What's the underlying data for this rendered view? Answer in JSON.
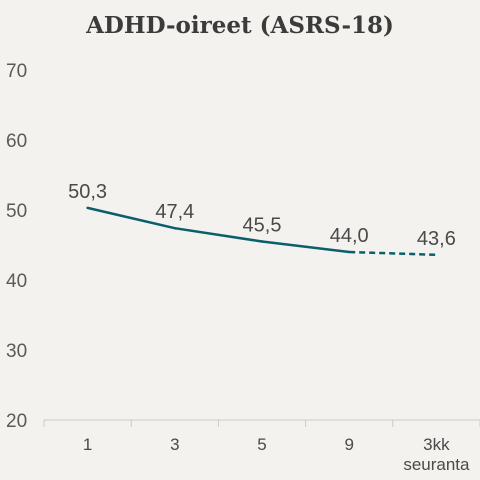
{
  "chart_data": {
    "type": "line",
    "title": "ADHD-oireet (ASRS-18)",
    "xlabel": "",
    "ylabel": "",
    "categories": [
      "1",
      "3",
      "5",
      "9",
      "3kk\nseuranta"
    ],
    "values": [
      50.3,
      47.4,
      45.5,
      44.0,
      43.6
    ],
    "data_labels": [
      "50,3",
      "47,4",
      "45,5",
      "44,0",
      "43,6"
    ],
    "ylim": [
      20,
      70
    ],
    "yticks": [
      20,
      30,
      40,
      50,
      60,
      70
    ],
    "grid": false,
    "line_color": "#0b5f6b",
    "background": "#f3f2ef",
    "segment_styles": [
      "solid",
      "solid",
      "solid",
      "dashed"
    ]
  }
}
